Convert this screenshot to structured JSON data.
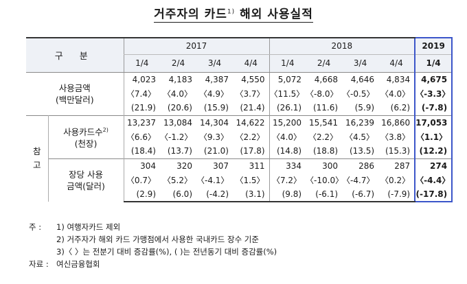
{
  "title": "거주자의 카드",
  "title_sup": "1)",
  "title_rest": "해외 사용실적",
  "header": {
    "gubun": "구 분",
    "years": [
      "2017",
      "2018",
      "2019"
    ],
    "quarters": [
      "1/4",
      "2/4",
      "3/4",
      "4/4",
      "1/4",
      "2/4",
      "3/4",
      "4/4",
      "1/4"
    ]
  },
  "rows": {
    "usage": {
      "label1": "사용금액",
      "label2": "(백만달러)",
      "values": [
        "4,023",
        "4,183",
        "4,387",
        "4,550",
        "5,072",
        "4,668",
        "4,646",
        "4,834",
        "4,675"
      ],
      "qoq": [
        "〈7.4〉",
        "〈4.0〉",
        "〈4.9〉",
        "〈3.7〉",
        "〈11.5〉",
        "〈-8.0〉",
        "〈-0.5〉",
        "〈4.0〉",
        "〈-3.3〉"
      ],
      "yoy": [
        "(21.9)",
        "(20.6)",
        "(15.9)",
        "(21.4)",
        "(26.1)",
        "(11.6)",
        "(5.9)",
        "(6.2)",
        "(-7.8)"
      ]
    },
    "cards": {
      "label1": "사용카드수",
      "label_sup": "2)",
      "label2": "(천장)",
      "values": [
        "13,237",
        "13,084",
        "14,304",
        "14,622",
        "15,200",
        "15,541",
        "16,239",
        "16,860",
        "17,053"
      ],
      "qoq": [
        "〈6.6〉",
        "〈-1.2〉",
        "〈9.3〉",
        "〈2.2〉",
        "〈4.0〉",
        "〈2.2〉",
        "〈4.5〉",
        "〈3.8〉",
        "〈1.1〉"
      ],
      "yoy": [
        "(18.4)",
        "(13.7)",
        "(21.0)",
        "(17.8)",
        "(14.8)",
        "(18.8)",
        "(13.5)",
        "(15.3)",
        "(12.2)"
      ]
    },
    "per_card": {
      "label1": "장당 사용",
      "label2": "금액(달러)",
      "values": [
        "304",
        "320",
        "307",
        "311",
        "334",
        "300",
        "286",
        "287",
        "274"
      ],
      "qoq": [
        "〈0.7〉",
        "〈5.2〉",
        "〈-4.1〉",
        "〈1.5〉",
        "〈7.2〉",
        "〈-10.0〉",
        "〈-4.7〉",
        "〈0.2〉",
        "〈-4.4〉"
      ],
      "yoy": [
        "(2.9)",
        "(6.0)",
        "(-4.2)",
        "(3.1)",
        "(9.8)",
        "(-6.1)",
        "(-6.7)",
        "(-7.9)",
        "(-17.8)"
      ]
    },
    "ref_label": "참\n고"
  },
  "notes": {
    "label": "주 :",
    "n1": "1) 여행자카드 제외",
    "n2": "2) 거주자가 해외 카드 가맹점에서 사용한 국내카드 장수 기준",
    "n3": "3)〈  〉는 전분기 대비 증감률(%), (  )는 전년동기 대비 증감률(%)",
    "source_label": "자료 :",
    "source": "여신금융협회"
  }
}
